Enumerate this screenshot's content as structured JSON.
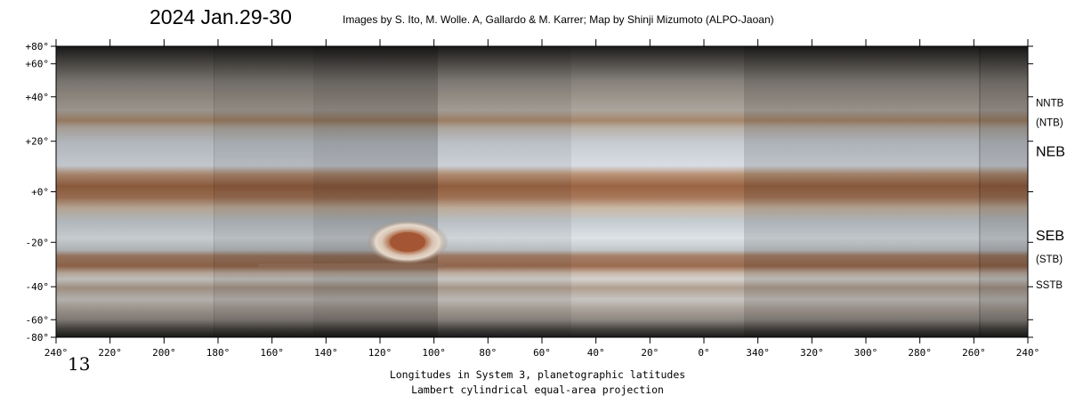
{
  "title": "2024 Jan.29-30",
  "credit": "Images by S. Ito, M. Wolle. A, Gallardo & M. Karrer;  Map by Shinji Mizumoto (ALPO-Jaoan)",
  "latitude_labels": [
    {
      "text": "+80°",
      "lat": 80
    },
    {
      "text": "+60°",
      "lat": 60
    },
    {
      "text": "+40°",
      "lat": 40
    },
    {
      "text": "+20°",
      "lat": 20
    },
    {
      "text": "+0°",
      "lat": 0
    },
    {
      "text": "-20°",
      "lat": -20
    },
    {
      "text": "-40°",
      "lat": -40
    },
    {
      "text": "-60°",
      "lat": -60
    },
    {
      "text": "-80°",
      "lat": -80
    }
  ],
  "longitude_labels": [
    "240°",
    "220°",
    "200°",
    "180°",
    "160°",
    "140°",
    "120°",
    "100°",
    "80°",
    "60°",
    "40°",
    "20°",
    "0°",
    "340°",
    "320°",
    "300°",
    "280°",
    "260°",
    "240°"
  ],
  "belt_labels": [
    {
      "text": "NNTB",
      "lat": 37,
      "size": "small"
    },
    {
      "text": "(NTB)",
      "lat": 28,
      "size": "small"
    },
    {
      "text": "NEB",
      "lat": 16,
      "size": "large"
    },
    {
      "text": "SEB",
      "lat": -17,
      "size": "large"
    },
    {
      "text": "(STB)",
      "lat": -27,
      "size": "small"
    },
    {
      "text": "SSTB",
      "lat": -39,
      "size": "small"
    }
  ],
  "footer_line1": "Longitudes in System 3, planetographic latitudes",
  "footer_line2": "Lambert cylindrical equal-area projection",
  "handwritten_mark": "13"
}
